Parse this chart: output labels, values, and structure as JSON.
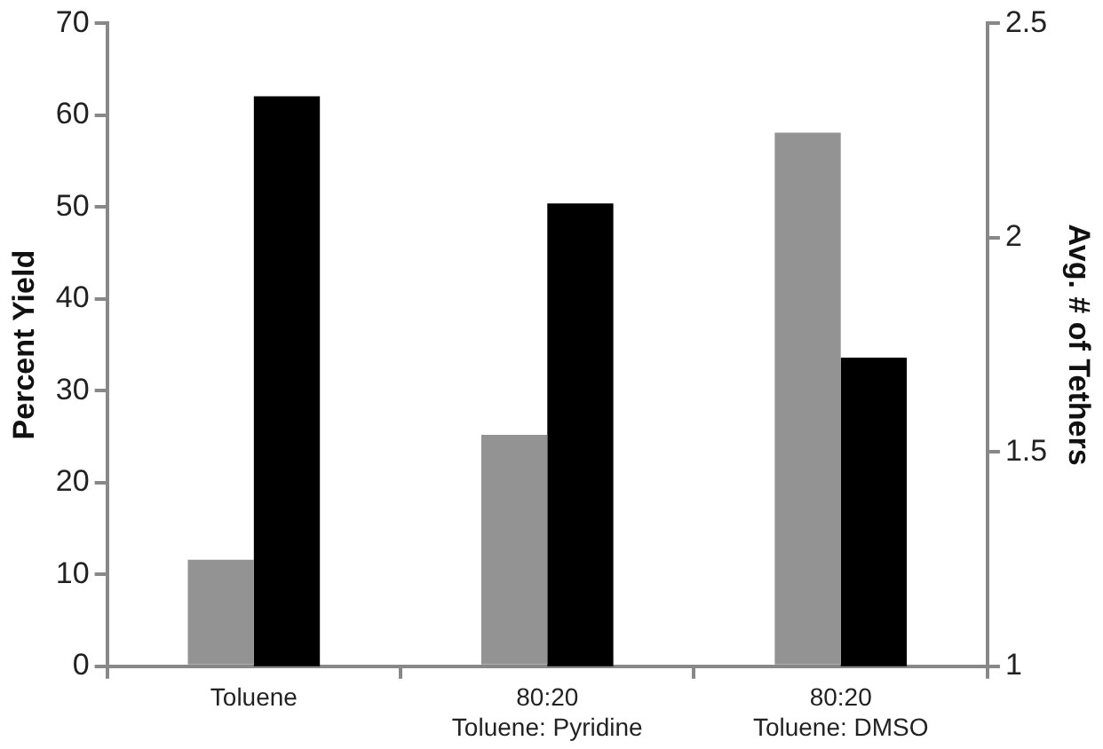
{
  "chart_data": {
    "type": "bar",
    "ylabel": "Percent Yield",
    "y2label": "Avg. # of Tethers",
    "categories": [
      "Toluene",
      "80:20\nToluene: Pyridine",
      "80:20\nToluene: DMSO"
    ],
    "series": [
      {
        "color": "#939393",
        "values": [
          11.6,
          25.2,
          58.1
        ]
      },
      {
        "color": "#000000",
        "values": [
          2.33,
          2.08,
          1.72
        ],
        "axis": "y2"
      }
    ],
    "ylim": [
      0,
      70
    ],
    "yticks": [
      0,
      10,
      20,
      30,
      40,
      50,
      60,
      70
    ],
    "y2lim": [
      1,
      2.5
    ],
    "y2ticks": [
      1,
      1.5,
      2,
      2.5
    ],
    "grid": false,
    "legend": false
  }
}
